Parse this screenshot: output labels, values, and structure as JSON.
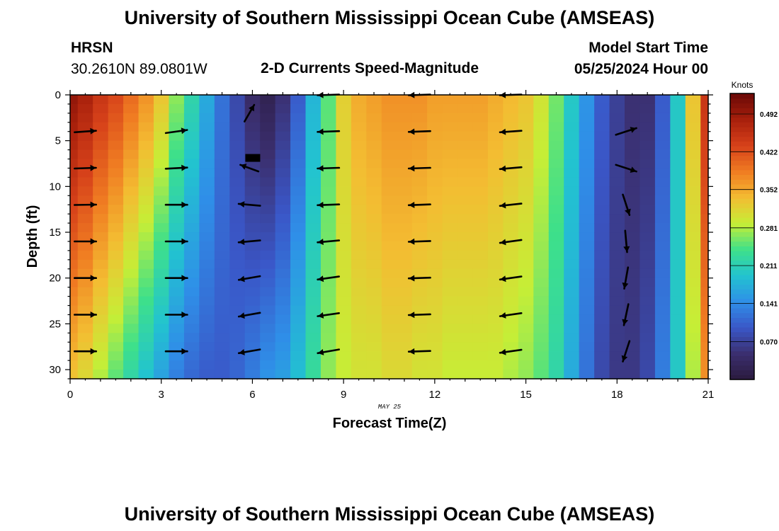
{
  "page": {
    "title_top": "University of Southern Mississippi Ocean Cube (AMSEAS)",
    "title_bottom": "University of Southern Mississippi Ocean Cube (AMSEAS)",
    "station_id": "HRSN",
    "station_coords": "30.2610N  89.0801W",
    "plot_title": "2-D Currents Speed-Magnitude",
    "model_label": "Model Start Time",
    "model_time": "05/25/2024 Hour 00",
    "date_label": "MAY 25"
  },
  "colors": {
    "palette": [
      "#2a1a3e",
      "#3b2f6f",
      "#3a57c8",
      "#2f8fe8",
      "#22c3d0",
      "#3ee08a",
      "#c6ee36",
      "#f3bd32",
      "#f07c22",
      "#d6411a",
      "#a8200c",
      "#6a0806"
    ]
  },
  "chart_data": {
    "type": "heatmap",
    "title": "2-D Currents Speed-Magnitude",
    "xlabel": "Forecast Time(Z)",
    "ylabel": "Depth (ft)",
    "xlim": [
      0,
      21
    ],
    "ylim": [
      0,
      31
    ],
    "x_ticks": [
      "0",
      "3",
      "6",
      "9",
      "12",
      "15",
      "18",
      "21"
    ],
    "y_ticks": [
      "0",
      "5",
      "10",
      "15",
      "20",
      "25",
      "30"
    ],
    "colorbar": {
      "label": "Knots",
      "range": [
        0.0,
        0.53
      ],
      "ticks": [
        "0.492",
        "0.422",
        "0.352",
        "0.281",
        "0.211",
        "0.141",
        "0.070"
      ],
      "tick_values": [
        0.492,
        0.422,
        0.352,
        0.281,
        0.211,
        0.141,
        0.07
      ]
    },
    "speed_grid": {
      "hours": [
        0,
        0.5,
        1,
        1.5,
        2,
        2.5,
        3,
        3.5,
        4,
        4.5,
        5,
        5.5,
        6,
        6.5,
        7,
        7.5,
        8,
        8.5,
        9,
        9.5,
        10,
        10.5,
        11,
        11.5,
        12,
        12.5,
        13,
        13.5,
        14,
        14.5,
        15,
        15.5,
        16,
        16.5,
        17,
        17.5,
        18,
        18.5,
        19,
        19.5,
        20,
        20.5,
        21
      ],
      "depths": [
        0,
        31
      ],
      "top_knots": [
        0.5,
        0.48,
        0.45,
        0.43,
        0.4,
        0.37,
        0.33,
        0.27,
        0.22,
        0.17,
        0.12,
        0.08,
        0.04,
        0.02,
        0.05,
        0.1,
        0.18,
        0.25,
        0.32,
        0.35,
        0.36,
        0.37,
        0.37,
        0.37,
        0.36,
        0.36,
        0.36,
        0.36,
        0.35,
        0.34,
        0.33,
        0.3,
        0.26,
        0.2,
        0.15,
        0.1,
        0.07,
        0.05,
        0.05,
        0.1,
        0.2,
        0.33,
        0.45
      ],
      "bottom_knots": [
        0.33,
        0.31,
        0.28,
        0.25,
        0.22,
        0.19,
        0.16,
        0.13,
        0.11,
        0.1,
        0.1,
        0.11,
        0.13,
        0.15,
        0.16,
        0.19,
        0.23,
        0.27,
        0.29,
        0.3,
        0.3,
        0.31,
        0.31,
        0.3,
        0.3,
        0.29,
        0.29,
        0.29,
        0.29,
        0.28,
        0.27,
        0.25,
        0.22,
        0.17,
        0.12,
        0.08,
        0.06,
        0.06,
        0.08,
        0.13,
        0.2,
        0.28,
        0.37
      ]
    },
    "vectors": {
      "note": "dir = degrees clockwise from east (screen), len = relative arrow length",
      "columns": [
        {
          "hour": 0.5,
          "items": [
            {
              "depth": 4,
              "dir": -4,
              "len": 0.95
            },
            {
              "depth": 8,
              "dir": -2,
              "len": 0.95
            },
            {
              "depth": 12,
              "dir": -1,
              "len": 0.95
            },
            {
              "depth": 16,
              "dir": 0,
              "len": 0.95
            },
            {
              "depth": 20,
              "dir": 0,
              "len": 0.95
            },
            {
              "depth": 24,
              "dir": 0,
              "len": 0.95
            },
            {
              "depth": 28,
              "dir": 0,
              "len": 0.95
            }
          ]
        },
        {
          "hour": 3.5,
          "items": [
            {
              "depth": 4,
              "dir": -8,
              "len": 0.95
            },
            {
              "depth": 8,
              "dir": -3,
              "len": 0.95
            },
            {
              "depth": 12,
              "dir": 0,
              "len": 0.95
            },
            {
              "depth": 16,
              "dir": 0,
              "len": 0.95
            },
            {
              "depth": 20,
              "dir": 0,
              "len": 0.95
            },
            {
              "depth": 24,
              "dir": 0,
              "len": 0.95
            },
            {
              "depth": 28,
              "dir": 0,
              "len": 0.95
            }
          ]
        },
        {
          "hour": 5.9,
          "items": [
            {
              "depth": 2,
              "dir": -60,
              "len": 0.85
            },
            {
              "depth": 8,
              "dir": 200,
              "len": 0.85
            },
            {
              "depth": 12,
              "dir": 185,
              "len": 0.95
            },
            {
              "depth": 16,
              "dir": 175,
              "len": 0.95
            },
            {
              "depth": 20,
              "dir": 170,
              "len": 0.95
            },
            {
              "depth": 24,
              "dir": 170,
              "len": 0.95
            },
            {
              "depth": 28,
              "dir": 170,
              "len": 0.95
            }
          ]
        },
        {
          "hour": 8.5,
          "items": [
            {
              "depth": 0,
              "dir": 178,
              "len": 0.95
            },
            {
              "depth": 4,
              "dir": 178,
              "len": 0.95
            },
            {
              "depth": 8,
              "dir": 178,
              "len": 0.95
            },
            {
              "depth": 12,
              "dir": 178,
              "len": 0.95
            },
            {
              "depth": 16,
              "dir": 175,
              "len": 0.95
            },
            {
              "depth": 20,
              "dir": 172,
              "len": 0.95
            },
            {
              "depth": 24,
              "dir": 172,
              "len": 0.95
            },
            {
              "depth": 28,
              "dir": 170,
              "len": 0.95
            }
          ]
        },
        {
          "hour": 11.5,
          "items": [
            {
              "depth": 0,
              "dir": 178,
              "len": 0.95
            },
            {
              "depth": 4,
              "dir": 178,
              "len": 0.95
            },
            {
              "depth": 8,
              "dir": 178,
              "len": 0.95
            },
            {
              "depth": 12,
              "dir": 178,
              "len": 0.95
            },
            {
              "depth": 16,
              "dir": 178,
              "len": 0.95
            },
            {
              "depth": 20,
              "dir": 178,
              "len": 0.95
            },
            {
              "depth": 24,
              "dir": 178,
              "len": 0.95
            },
            {
              "depth": 28,
              "dir": 178,
              "len": 0.95
            }
          ]
        },
        {
          "hour": 14.5,
          "items": [
            {
              "depth": 0,
              "dir": 178,
              "len": 0.95
            },
            {
              "depth": 4,
              "dir": 176,
              "len": 0.95
            },
            {
              "depth": 8,
              "dir": 175,
              "len": 0.95
            },
            {
              "depth": 12,
              "dir": 174,
              "len": 0.95
            },
            {
              "depth": 16,
              "dir": 172,
              "len": 0.95
            },
            {
              "depth": 20,
              "dir": 172,
              "len": 0.95
            },
            {
              "depth": 24,
              "dir": 172,
              "len": 0.95
            },
            {
              "depth": 28,
              "dir": 172,
              "len": 0.95
            }
          ]
        },
        {
          "hour": 18.3,
          "items": [
            {
              "depth": 4,
              "dir": -18,
              "len": 0.95
            },
            {
              "depth": 8,
              "dir": 18,
              "len": 0.95
            },
            {
              "depth": 12,
              "dir": 72,
              "len": 0.95
            },
            {
              "depth": 16,
              "dir": 85,
              "len": 0.95
            },
            {
              "depth": 20,
              "dir": 100,
              "len": 0.95
            },
            {
              "depth": 24,
              "dir": 102,
              "len": 0.95
            },
            {
              "depth": 28,
              "dir": 108,
              "len": 0.95
            }
          ]
        }
      ]
    },
    "black_marker": {
      "hour": 6.0,
      "depth": 7
    }
  }
}
